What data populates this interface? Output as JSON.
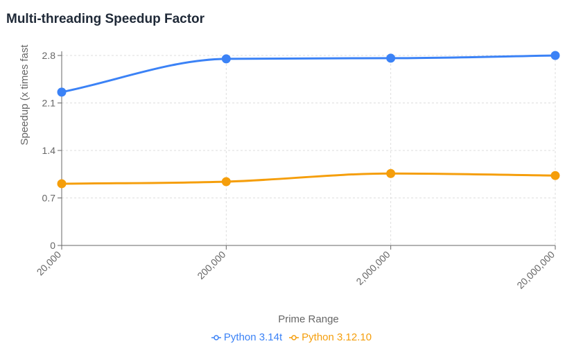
{
  "chart_data": {
    "type": "line",
    "title": "Multi-threading Speedup Factor",
    "xlabel": "Prime Range",
    "ylabel": "Speedup (x times fast",
    "categories": [
      "20,000",
      "200,000",
      "2,000,000",
      "20,000,000"
    ],
    "ylim": [
      0,
      2.8
    ],
    "yticks": [
      "0",
      "0.7",
      "1.4",
      "2.1",
      "2.8"
    ],
    "grid": true,
    "legend_position": "bottom",
    "series": [
      {
        "name": "Python 3.14t",
        "color": "#3b82f6",
        "values": [
          2.26,
          2.75,
          2.76,
          2.8
        ]
      },
      {
        "name": "Python 3.12.10",
        "color": "#f59e0b",
        "values": [
          0.91,
          0.94,
          1.06,
          1.03
        ]
      }
    ]
  }
}
